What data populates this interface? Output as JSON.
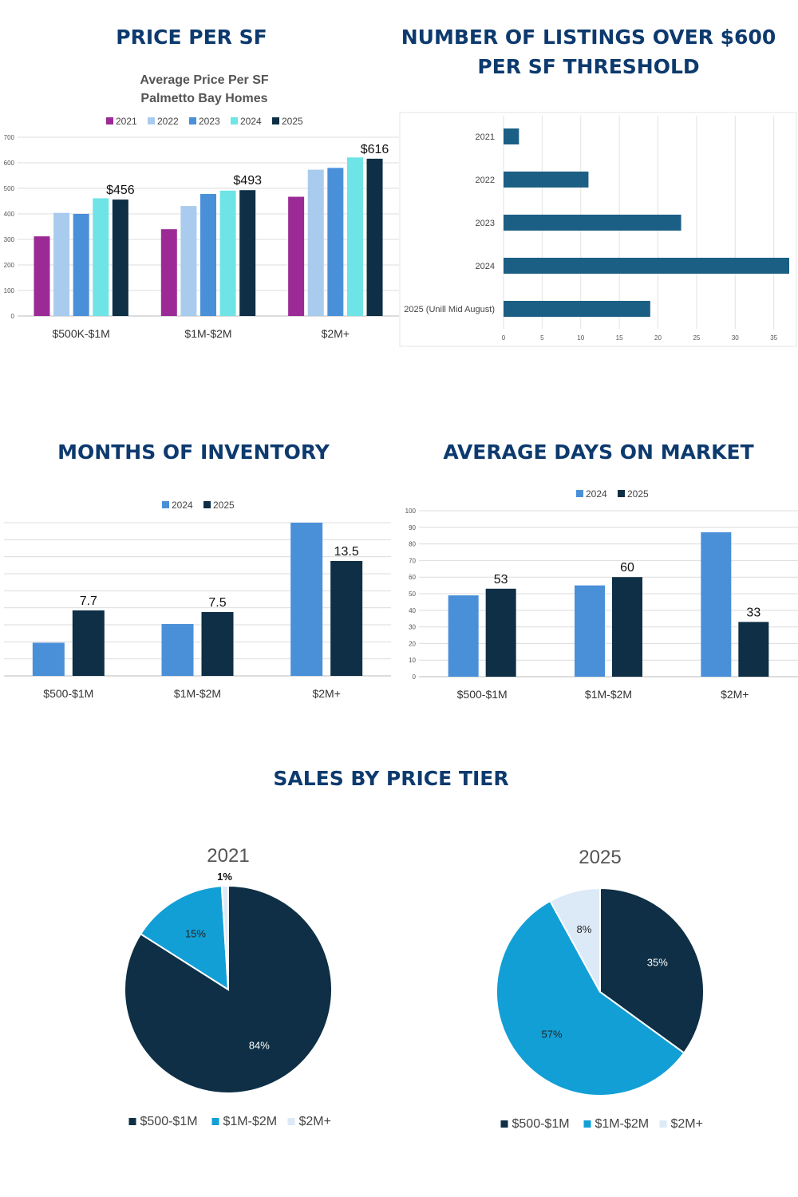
{
  "headings": {
    "price_per_sf": "PRICE PER SF",
    "listings_over": "NUMBER OF LISTINGS OVER $600 PER SF THRESHOLD",
    "months_inventory": "MONTHS OF INVENTORY",
    "days_on_market": "AVERAGE DAYS ON MARKET",
    "sales_by_tier": "SALES BY PRICE TIER"
  },
  "chart_data": [
    {
      "id": "price_per_sf",
      "type": "bar",
      "title": "Average Price Per SF",
      "subtitle": "Palmetto Bay Homes",
      "categories": [
        "$500K-$1M",
        "$1M-$2M",
        "$2M+"
      ],
      "series": [
        {
          "name": "2021",
          "color": "#9c2a96",
          "values": [
            312,
            340,
            467
          ]
        },
        {
          "name": "2022",
          "color": "#a9cbee",
          "values": [
            404,
            431,
            573
          ]
        },
        {
          "name": "2023",
          "color": "#4a90d9",
          "values": [
            400,
            478,
            580
          ]
        },
        {
          "name": "2024",
          "color": "#6ee4e6",
          "values": [
            461,
            491,
            621
          ]
        },
        {
          "name": "2025",
          "color": "#0e2f45",
          "values": [
            456,
            493,
            616
          ]
        }
      ],
      "data_labels": [
        {
          "series": "2025",
          "labels": [
            "$456",
            "$493",
            "$616"
          ]
        }
      ],
      "ylim": [
        0,
        700
      ],
      "yticks": [
        0,
        100,
        200,
        300,
        400,
        500,
        600,
        700
      ],
      "legend": "top",
      "grid": true
    },
    {
      "id": "listings_over_600",
      "type": "bar",
      "orientation": "horizontal",
      "categories": [
        "2021",
        "2022",
        "2023",
        "2024",
        "2025 (Unill Mid August)"
      ],
      "values": [
        2,
        11,
        23,
        37,
        19
      ],
      "color": "#1b5f84",
      "xlim": [
        0,
        37
      ],
      "xticks": [
        0,
        5,
        10,
        15,
        20,
        25,
        30,
        35
      ],
      "grid": true
    },
    {
      "id": "months_of_inventory",
      "type": "bar",
      "categories": [
        "$500-$1M",
        "$1M-$2M",
        "$2M+"
      ],
      "series": [
        {
          "name": "2024",
          "color": "#4a90d9",
          "values": [
            3.9,
            6.1,
            18
          ]
        },
        {
          "name": "2025",
          "color": "#0e2f45",
          "values": [
            7.7,
            7.5,
            13.5
          ]
        }
      ],
      "data_labels": [
        {
          "series": "2025",
          "labels": [
            "7.7",
            "7.5",
            "13.5"
          ]
        }
      ],
      "ylim": [
        0,
        18
      ],
      "legend": "top",
      "grid": true
    },
    {
      "id": "average_days_on_market",
      "type": "bar",
      "categories": [
        "$500-$1M",
        "$1M-$2M",
        "$2M+"
      ],
      "series": [
        {
          "name": "2024",
          "color": "#4a90d9",
          "values": [
            49,
            55,
            87
          ]
        },
        {
          "name": "2025",
          "color": "#0e2f45",
          "values": [
            53,
            60,
            33
          ]
        }
      ],
      "data_labels": [
        {
          "series": "2025",
          "labels": [
            "53",
            "60",
            "33"
          ]
        }
      ],
      "ylim": [
        0,
        100
      ],
      "yticks": [
        0,
        10,
        20,
        30,
        40,
        50,
        60,
        70,
        80,
        90,
        100
      ],
      "legend": "top",
      "grid": true
    },
    {
      "id": "sales_2021",
      "type": "pie",
      "title": "2021",
      "slices": [
        {
          "name": "$500-$1M",
          "value": 84,
          "label": "84%",
          "color": "#0e2f45"
        },
        {
          "name": "$1M-$2M",
          "value": 15,
          "label": "15%",
          "color": "#129fd6"
        },
        {
          "name": "$2M+",
          "value": 1,
          "label": "1%",
          "color": "#dce9f7"
        }
      ],
      "legend": "bottom"
    },
    {
      "id": "sales_2025",
      "type": "pie",
      "title": "2025",
      "slices": [
        {
          "name": "$500-$1M",
          "value": 35,
          "label": "35%",
          "color": "#0e2f45"
        },
        {
          "name": "$1M-$2M",
          "value": 57,
          "label": "57%",
          "color": "#129fd6"
        },
        {
          "name": "$2M+",
          "value": 8,
          "label": "8%",
          "color": "#dce9f7"
        }
      ],
      "legend": "bottom"
    }
  ]
}
